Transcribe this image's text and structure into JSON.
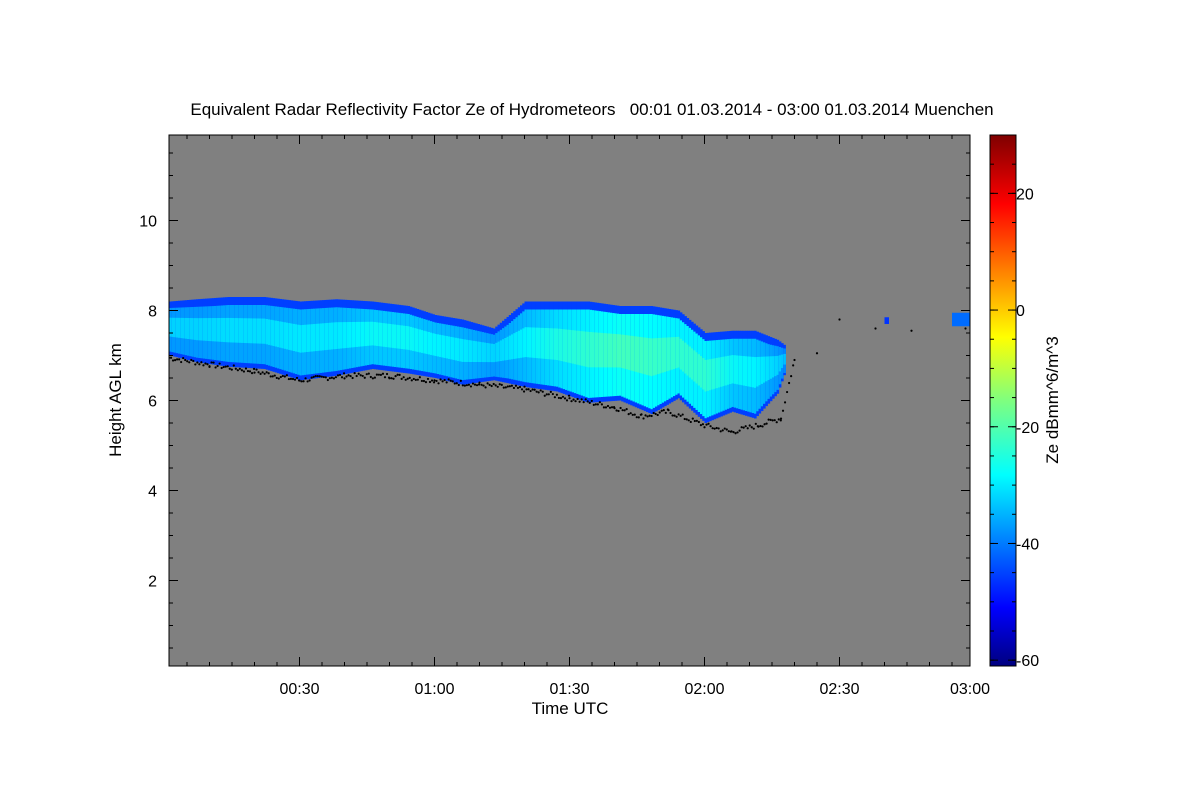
{
  "chart_data": {
    "type": "heatmap",
    "title": "Equivalent Radar Reflectivity Factor Ze of Hydrometeors   00:01 01.03.2014 - 03:00 01.03.2014 Muenchen",
    "xlabel": "Time UTC",
    "ylabel": "Height AGL km",
    "x_range_minutes": [
      1,
      179
    ],
    "xlim": [
      "00:01",
      "03:00"
    ],
    "ylim": [
      0.1,
      11.9
    ],
    "x_ticks": [
      {
        "label": "00:30",
        "minute": 30
      },
      {
        "label": "01:00",
        "minute": 60
      },
      {
        "label": "01:30",
        "minute": 90
      },
      {
        "label": "02:00",
        "minute": 120
      },
      {
        "label": "02:30",
        "minute": 150
      },
      {
        "label": "03:00",
        "minute": 179
      }
    ],
    "y_ticks": [
      2,
      4,
      6,
      8,
      10
    ],
    "background_color": "#808080",
    "colorbar": {
      "label": "Ze dBmm^6/m^3",
      "range": [
        -61,
        30
      ],
      "ticks": [
        20,
        0,
        -20,
        -40,
        -60
      ],
      "colormap": "jet"
    },
    "cloud_layer": {
      "points": [
        {
          "minute": 1,
          "top_km": 8.2,
          "base_km": 7.0,
          "max_dbz": -30
        },
        {
          "minute": 7,
          "top_km": 8.25,
          "base_km": 6.85,
          "max_dbz": -30
        },
        {
          "minute": 14,
          "top_km": 8.3,
          "base_km": 6.75,
          "max_dbz": -29
        },
        {
          "minute": 22,
          "top_km": 8.3,
          "base_km": 6.7,
          "max_dbz": -29
        },
        {
          "minute": 30,
          "top_km": 8.2,
          "base_km": 6.45,
          "max_dbz": -28
        },
        {
          "minute": 38,
          "top_km": 8.25,
          "base_km": 6.55,
          "max_dbz": -28
        },
        {
          "minute": 46,
          "top_km": 8.2,
          "base_km": 6.7,
          "max_dbz": -26
        },
        {
          "minute": 54,
          "top_km": 8.1,
          "base_km": 6.6,
          "max_dbz": -26
        },
        {
          "minute": 60,
          "top_km": 7.9,
          "base_km": 6.5,
          "max_dbz": -27
        },
        {
          "minute": 66,
          "top_km": 7.8,
          "base_km": 6.35,
          "max_dbz": -28
        },
        {
          "minute": 73,
          "top_km": 7.6,
          "base_km": 6.45,
          "max_dbz": -30
        },
        {
          "minute": 80,
          "top_km": 8.2,
          "base_km": 6.3,
          "max_dbz": -27
        },
        {
          "minute": 87,
          "top_km": 8.2,
          "base_km": 6.2,
          "max_dbz": -24
        },
        {
          "minute": 94,
          "top_km": 8.2,
          "base_km": 5.95,
          "max_dbz": -22
        },
        {
          "minute": 101,
          "top_km": 8.1,
          "base_km": 6.0,
          "max_dbz": -20
        },
        {
          "minute": 108,
          "top_km": 8.1,
          "base_km": 5.7,
          "max_dbz": -21
        },
        {
          "minute": 114,
          "top_km": 8.0,
          "base_km": 6.05,
          "max_dbz": -22
        },
        {
          "minute": 120,
          "top_km": 7.5,
          "base_km": 5.5,
          "max_dbz": -22
        },
        {
          "minute": 126,
          "top_km": 7.55,
          "base_km": 5.75,
          "max_dbz": -26
        },
        {
          "minute": 131,
          "top_km": 7.55,
          "base_km": 5.6,
          "max_dbz": -27
        },
        {
          "minute": 136,
          "top_km": 7.35,
          "base_km": 6.15,
          "max_dbz": -30
        },
        {
          "minute": 138,
          "top_km": 7.2,
          "base_km": 6.7,
          "max_dbz": -32
        }
      ],
      "patches": [
        {
          "minute_start": 160,
          "minute_end": 161,
          "top_km": 7.85,
          "base_km": 7.7,
          "max_dbz": -45
        },
        {
          "minute_start": 175,
          "minute_end": 179,
          "top_km": 7.95,
          "base_km": 7.65,
          "max_dbz": -40
        }
      ]
    },
    "cloud_base_dots": [
      {
        "minute": 1,
        "height_km": 6.95
      },
      {
        "minute": 10,
        "height_km": 6.8
      },
      {
        "minute": 20,
        "height_km": 6.65
      },
      {
        "minute": 30,
        "height_km": 6.45
      },
      {
        "minute": 40,
        "height_km": 6.55
      },
      {
        "minute": 50,
        "height_km": 6.55
      },
      {
        "minute": 60,
        "height_km": 6.45
      },
      {
        "minute": 70,
        "height_km": 6.35
      },
      {
        "minute": 80,
        "height_km": 6.25
      },
      {
        "minute": 90,
        "height_km": 6.05
      },
      {
        "minute": 100,
        "height_km": 5.85
      },
      {
        "minute": 106,
        "height_km": 5.65
      },
      {
        "minute": 112,
        "height_km": 5.75
      },
      {
        "minute": 120,
        "height_km": 5.45
      },
      {
        "minute": 126,
        "height_km": 5.3
      },
      {
        "minute": 132,
        "height_km": 5.45
      },
      {
        "minute": 137,
        "height_km": 5.6
      },
      {
        "minute": 140,
        "height_km": 6.9
      },
      {
        "minute": 145,
        "height_km": 7.05
      },
      {
        "minute": 150,
        "height_km": 7.8
      },
      {
        "minute": 158,
        "height_km": 7.6
      },
      {
        "minute": 166,
        "height_km": 7.55
      },
      {
        "minute": 178,
        "height_km": 7.6
      }
    ]
  }
}
